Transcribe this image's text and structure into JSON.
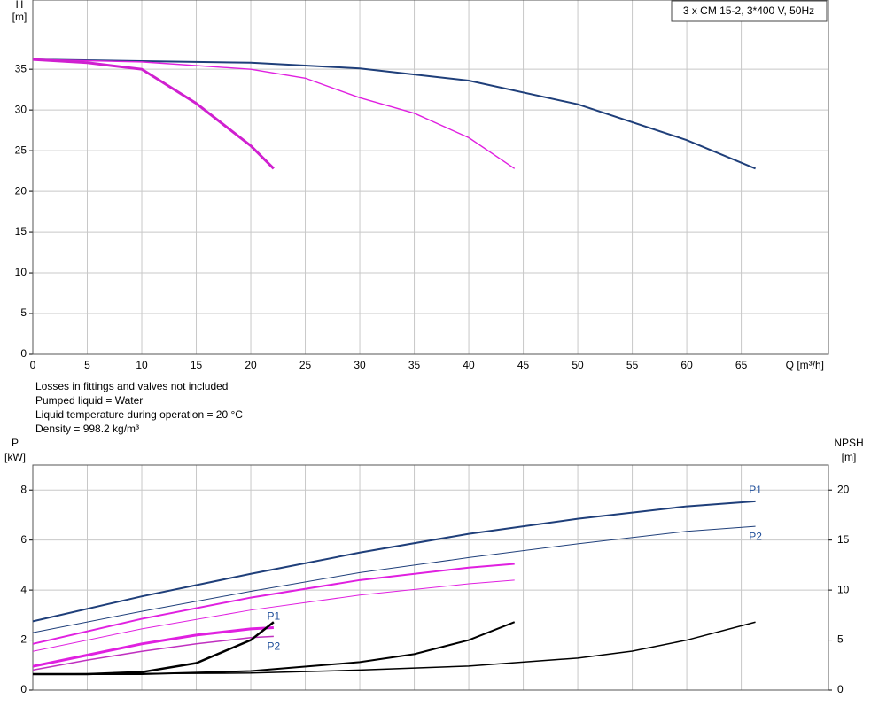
{
  "chart_data": [
    {
      "type": "line",
      "title": "3 x CM 15-2, 3*400 V, 50Hz",
      "x_label": "Q [m³/h]",
      "y_label": [
        "H",
        "[m]"
      ],
      "xlim": [
        0,
        73
      ],
      "xticks": [
        0,
        5,
        10,
        15,
        20,
        25,
        30,
        35,
        40,
        45,
        50,
        55,
        60,
        65
      ],
      "ylim": [
        0,
        43.5
      ],
      "yticks": [
        0,
        5,
        10,
        15,
        20,
        25,
        30,
        35
      ],
      "grid": true,
      "series": [
        {
          "color": "#1f3f7a",
          "width": 2,
          "x": [
            0,
            10,
            20,
            30,
            40,
            50,
            60,
            66.3
          ],
          "values": [
            36.2,
            36.0,
            35.8,
            35.1,
            33.6,
            30.7,
            26.3,
            22.8
          ]
        },
        {
          "color": "#e020e0",
          "width": 1.4,
          "x": [
            0,
            10,
            20,
            25,
            30,
            35,
            40,
            44.2
          ],
          "values": [
            36.2,
            35.9,
            35.0,
            33.9,
            31.5,
            29.6,
            26.6,
            22.8
          ]
        },
        {
          "color": "#d020d0",
          "width": 3,
          "x": [
            0,
            5,
            10,
            15,
            20,
            22.1
          ],
          "values": [
            36.2,
            35.8,
            35.0,
            30.8,
            25.6,
            22.8
          ]
        }
      ]
    },
    {
      "type": "line",
      "notes": [
        "Losses in fittings and valves not included",
        "Pumped liquid = Water",
        "Liquid temperature during operation = 20 °C",
        "Density = 998.2 kg/m³"
      ],
      "y_label": [
        "P",
        "[kW]"
      ],
      "y2_label": [
        "NPSH",
        "[m]"
      ],
      "xlim": [
        0,
        73
      ],
      "xticks": [
        0,
        5,
        10,
        15,
        20,
        25,
        30,
        35,
        40,
        45,
        50,
        55,
        60,
        65
      ],
      "ylim": [
        0,
        9
      ],
      "yticks": [
        0,
        2,
        4,
        6,
        8
      ],
      "y2lim": [
        0,
        22.5
      ],
      "y2ticks": [
        0,
        5,
        10,
        15,
        20
      ],
      "grid": true,
      "series": [
        {
          "name": "P1",
          "color": "#1f3f7a",
          "width": 2,
          "x": [
            0,
            10,
            20,
            30,
            40,
            50,
            60,
            66.3
          ],
          "values": [
            2.75,
            3.75,
            4.65,
            5.5,
            6.25,
            6.85,
            7.35,
            7.55
          ]
        },
        {
          "name": "P2",
          "color": "#1f3f7a",
          "width": 1,
          "x": [
            0,
            10,
            20,
            30,
            40,
            50,
            60,
            66.3
          ],
          "values": [
            2.3,
            3.15,
            3.95,
            4.7,
            5.3,
            5.85,
            6.35,
            6.55
          ]
        },
        {
          "color": "#e020e0",
          "width": 2,
          "x": [
            0,
            10,
            20,
            30,
            40,
            44.2
          ],
          "values": [
            1.85,
            2.85,
            3.7,
            4.4,
            4.9,
            5.05
          ]
        },
        {
          "color": "#e020e0",
          "width": 1,
          "x": [
            0,
            10,
            20,
            30,
            40,
            44.2
          ],
          "values": [
            1.55,
            2.45,
            3.2,
            3.8,
            4.25,
            4.4
          ]
        },
        {
          "name": "P1",
          "color": "#e020e0",
          "width": 3,
          "x": [
            0,
            5,
            10,
            15,
            20,
            22.1
          ],
          "values": [
            0.95,
            1.4,
            1.85,
            2.2,
            2.45,
            2.5
          ]
        },
        {
          "name": "P2",
          "color": "#c030c0",
          "width": 1.5,
          "x": [
            0,
            5,
            10,
            15,
            20,
            22.1
          ],
          "values": [
            0.8,
            1.2,
            1.55,
            1.85,
            2.1,
            2.15
          ]
        },
        {
          "axis": "y2",
          "color": "#000000",
          "width": 2.5,
          "x": [
            0,
            5,
            10,
            15,
            20,
            22.1
          ],
          "values": [
            1.6,
            1.6,
            1.8,
            2.7,
            5.0,
            6.8
          ]
        },
        {
          "axis": "y2",
          "color": "#000000",
          "width": 2,
          "x": [
            0,
            10,
            20,
            30,
            35,
            40,
            44.2
          ],
          "values": [
            1.6,
            1.6,
            1.9,
            2.8,
            3.6,
            5.0,
            6.8
          ]
        },
        {
          "axis": "y2",
          "color": "#000000",
          "width": 1.5,
          "x": [
            0,
            20,
            30,
            40,
            50,
            55,
            60,
            66.3
          ],
          "values": [
            1.6,
            1.7,
            2.0,
            2.4,
            3.2,
            3.9,
            5.0,
            6.8
          ]
        }
      ]
    }
  ]
}
